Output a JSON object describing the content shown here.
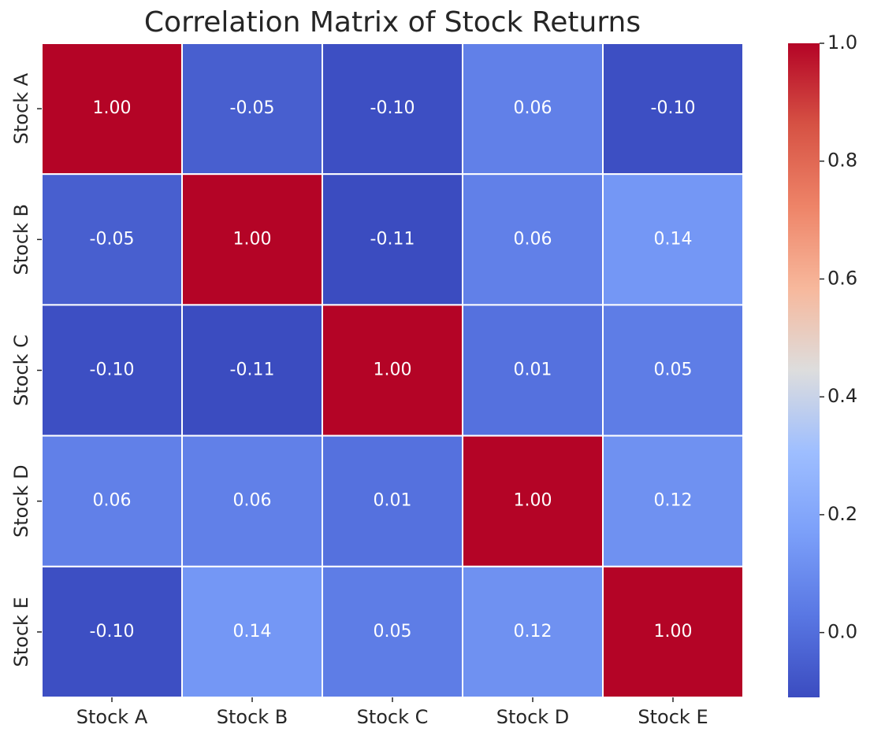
{
  "chart_data": {
    "type": "heatmap",
    "title": "Correlation Matrix of Stock Returns",
    "categories": [
      "Stock A",
      "Stock B",
      "Stock C",
      "Stock D",
      "Stock E"
    ],
    "values": [
      [
        1,
        -0.05,
        -0.1,
        0.06,
        -0.1
      ],
      [
        -0.05,
        1,
        -0.11,
        0.06,
        0.14
      ],
      [
        -0.1,
        -0.11,
        1,
        0.01,
        0.05
      ],
      [
        0.06,
        0.06,
        0.01,
        1,
        0.12
      ],
      [
        -0.1,
        0.14,
        0.05,
        0.12,
        1
      ]
    ],
    "value_labels": [
      [
        "1.00",
        "-0.05",
        "-0.10",
        "0.06",
        "-0.10"
      ],
      [
        "-0.05",
        "1.00",
        "-0.11",
        "0.06",
        "0.14"
      ],
      [
        "-0.10",
        "-0.11",
        "1.00",
        "0.01",
        "0.05"
      ],
      [
        "0.06",
        "0.06",
        "0.01",
        "1.00",
        "0.12"
      ],
      [
        "-0.10",
        "0.14",
        "0.05",
        "0.12",
        "1.00"
      ]
    ],
    "colormap": "coolwarm",
    "clim": [
      -0.11,
      1.0
    ],
    "cticks": [
      {
        "value": 0,
        "label": "0.0"
      },
      0.2,
      0.4,
      0.6,
      0.8,
      {
        "value": 1,
        "label": "1.0"
      }
    ]
  }
}
